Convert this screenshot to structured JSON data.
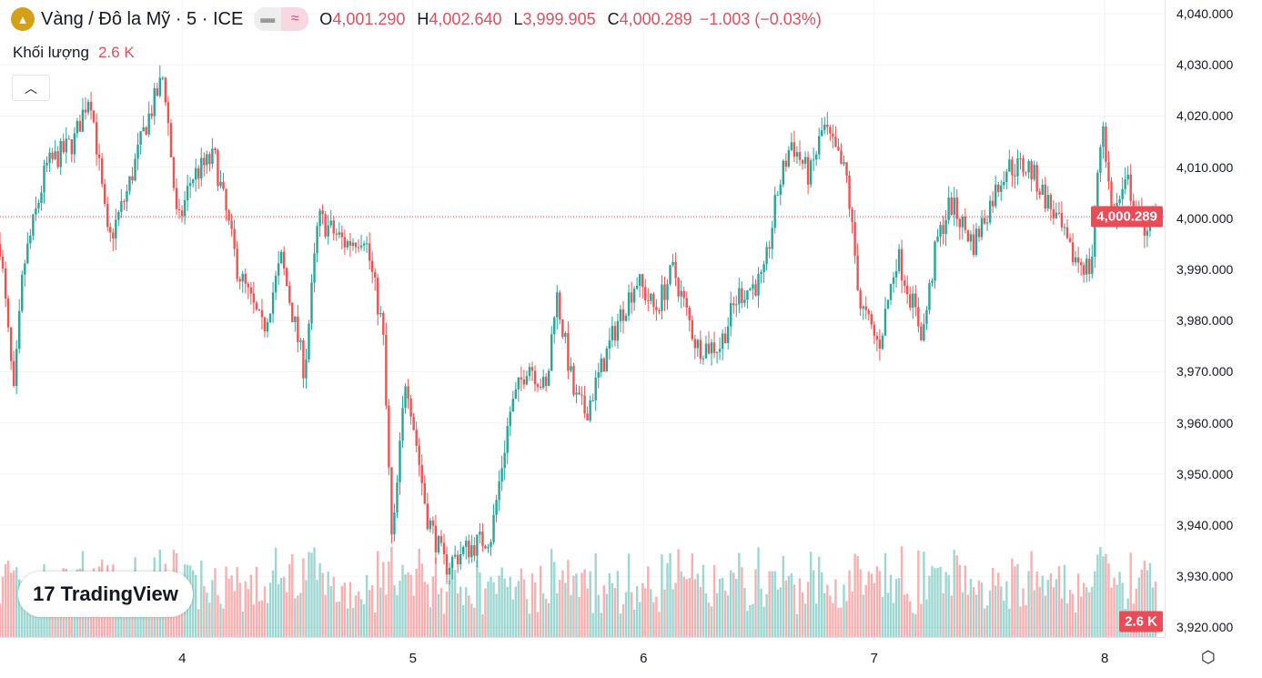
{
  "header": {
    "title": "Vàng / Đô la Mỹ · 5 · ICE",
    "pill_left": "▬",
    "pill_right": "≈",
    "o_label": "O",
    "o": "4,001.290",
    "h_label": "H",
    "h": "4,002.640",
    "l_label": "L",
    "l": "3,999.905",
    "c_label": "C",
    "c": "4,000.289",
    "change": "−1.003 (−0.03%)"
  },
  "volume": {
    "label": "Khối lượng",
    "value": "2.6 K"
  },
  "watermark": "TradingView",
  "colors": {
    "up": "#26a69a",
    "down": "#ef5350",
    "last": "#e84c57"
  },
  "chart_data": {
    "type": "candlestick",
    "y_ticks": [
      "4,040.000",
      "4,030.000",
      "4,020.000",
      "4,010.000",
      "4,000.000",
      "3,990.000",
      "3,980.000",
      "3,970.000",
      "3,960.000",
      "3,950.000",
      "3,940.000",
      "3,930.000",
      "3,920.000"
    ],
    "ylim": [
      3920,
      4040
    ],
    "x_ticks": [
      "4",
      "5",
      "6",
      "7",
      "8"
    ],
    "xlim": [
      3.21,
      8.22
    ],
    "last_price": "4,000.289",
    "last_price_value": 4000.289,
    "last_volume": "2.6 K",
    "path": [
      [
        3.21,
        3995
      ],
      [
        3.27,
        3965
      ],
      [
        3.31,
        3990
      ],
      [
        3.41,
        4010
      ],
      [
        3.53,
        4015
      ],
      [
        3.6,
        4025
      ],
      [
        3.68,
        3995
      ],
      [
        3.76,
        4005
      ],
      [
        3.84,
        4018
      ],
      [
        3.92,
        4028
      ],
      [
        3.98,
        3998
      ],
      [
        4.04,
        4008
      ],
      [
        4.14,
        4012
      ],
      [
        4.24,
        3990
      ],
      [
        4.35,
        3978
      ],
      [
        4.43,
        3992
      ],
      [
        4.53,
        3970
      ],
      [
        4.59,
        4000
      ],
      [
        4.71,
        3995
      ],
      [
        4.79,
        3997
      ],
      [
        4.87,
        3978
      ],
      [
        4.91,
        3935
      ],
      [
        4.97,
        3970
      ],
      [
        5.06,
        3942
      ],
      [
        5.14,
        3932
      ],
      [
        5.22,
        3935
      ],
      [
        5.34,
        3938
      ],
      [
        5.42,
        3962
      ],
      [
        5.5,
        3972
      ],
      [
        5.58,
        3966
      ],
      [
        5.62,
        3986
      ],
      [
        5.7,
        3965
      ],
      [
        5.75,
        3962
      ],
      [
        5.89,
        3980
      ],
      [
        5.97,
        3988
      ],
      [
        6.05,
        3982
      ],
      [
        6.13,
        3990
      ],
      [
        6.23,
        3975
      ],
      [
        6.33,
        3975
      ],
      [
        6.41,
        3985
      ],
      [
        6.52,
        3988
      ],
      [
        6.58,
        4005
      ],
      [
        6.64,
        4015
      ],
      [
        6.72,
        4008
      ],
      [
        6.78,
        4018
      ],
      [
        6.88,
        4008
      ],
      [
        6.94,
        3983
      ],
      [
        7.02,
        3975
      ],
      [
        7.1,
        3993
      ],
      [
        7.21,
        3977
      ],
      [
        7.27,
        3995
      ],
      [
        7.33,
        4003
      ],
      [
        7.43,
        3995
      ],
      [
        7.57,
        4010
      ],
      [
        7.67,
        4010
      ],
      [
        7.79,
        4000
      ],
      [
        7.85,
        3993
      ],
      [
        7.94,
        3990
      ],
      [
        7.99,
        4020
      ],
      [
        8.03,
        4000
      ],
      [
        8.1,
        4007
      ],
      [
        8.16,
        3998
      ],
      [
        8.22,
        4000.289
      ]
    ]
  }
}
